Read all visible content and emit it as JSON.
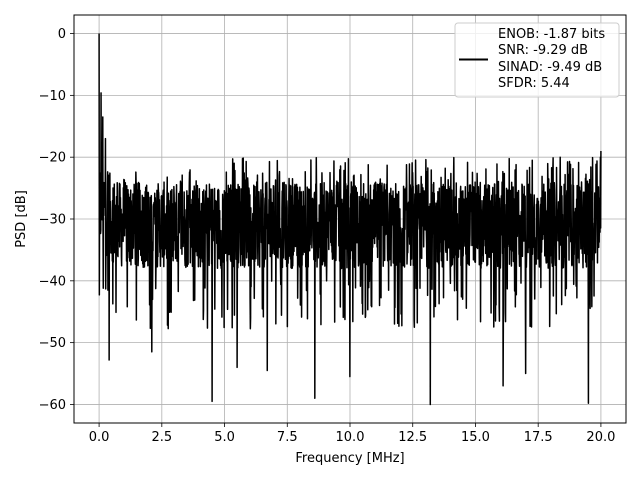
{
  "chart_data": {
    "type": "line",
    "xlabel": "Frequency [MHz]",
    "ylabel": "PSD [dB]",
    "xlim": [
      -1.0,
      21.0
    ],
    "ylim": [
      -63.0,
      3.0
    ],
    "xticks": [
      0.0,
      2.5,
      5.0,
      7.5,
      10.0,
      12.5,
      15.0,
      17.5,
      20.0
    ],
    "xtick_labels": [
      "0.0",
      "2.5",
      "5.0",
      "7.5",
      "10.0",
      "12.5",
      "15.0",
      "17.5",
      "20.0"
    ],
    "yticks": [
      0,
      -10,
      -20,
      -30,
      -40,
      -50,
      -60
    ],
    "ytick_labels": [
      "0",
      "−10",
      "−20",
      "−30",
      "−40",
      "−50",
      "−60"
    ],
    "grid": true,
    "legend_position": "top-right",
    "legend_lines": [
      "ENOB: -1.87 bits",
      "SNR: -9.29 dB",
      "SINAD: -9.49 dB",
      "SFDR: 5.44"
    ],
    "series": [
      {
        "color": "#000000",
        "x_range": [
          0.0,
          20.0
        ],
        "n_points": 2048,
        "baseline_db": -31.0,
        "peak_db": -20.0,
        "dip_min_db": -60.0,
        "features": [
          {
            "x": 0.0,
            "y": 0.0
          },
          {
            "x": 0.02,
            "y": -30.0
          },
          {
            "x": 0.08,
            "y": -9.6
          },
          {
            "x": 0.15,
            "y": -13.5
          },
          {
            "x": 0.25,
            "y": -17.0
          },
          {
            "x": 0.35,
            "y": -41.5
          },
          {
            "x": 0.4,
            "y": -52.8
          },
          {
            "x": 2.1,
            "y": -51.5
          },
          {
            "x": 4.5,
            "y": -59.5
          },
          {
            "x": 5.5,
            "y": -54.0
          },
          {
            "x": 6.7,
            "y": -54.5
          },
          {
            "x": 8.6,
            "y": -59.0
          },
          {
            "x": 10.0,
            "y": -55.5
          },
          {
            "x": 13.2,
            "y": -60.0
          },
          {
            "x": 16.1,
            "y": -57.0
          },
          {
            "x": 17.0,
            "y": -55.0
          },
          {
            "x": 19.5,
            "y": -59.8
          },
          {
            "x": 20.0,
            "y": -19.0
          }
        ]
      }
    ]
  }
}
